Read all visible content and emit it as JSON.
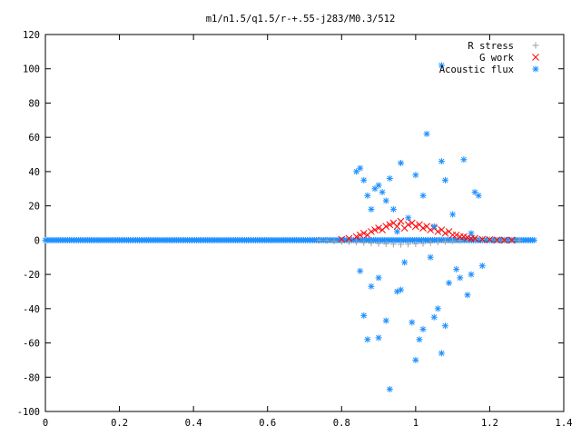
{
  "chart_data": {
    "type": "scatter",
    "title": "m1/n1.5/q1.5/r-+.55-j283/M0.3/512",
    "xlabel": "",
    "ylabel": "",
    "xlim": [
      0,
      1.4
    ],
    "ylim": [
      -100,
      120
    ],
    "x_ticks": [
      0,
      0.2,
      0.4,
      0.6,
      0.8,
      1,
      1.2,
      1.4
    ],
    "x_tick_labels": [
      "0",
      "0.2",
      "0.4",
      "0.6",
      "0.8",
      "1",
      "1.2",
      "1.4"
    ],
    "y_ticks": [
      -100,
      -80,
      -60,
      -40,
      -20,
      0,
      20,
      40,
      60,
      80,
      100,
      120
    ],
    "y_tick_labels": [
      "-100",
      "-80",
      "-60",
      "-40",
      "-20",
      "0",
      "20",
      "40",
      "60",
      "80",
      "100",
      "120"
    ],
    "grid": false,
    "legend_position": "top-right",
    "series": [
      {
        "name": "R stress",
        "marker": "plus",
        "color": "#a0a0a0",
        "points": [
          [
            0.74,
            0
          ],
          [
            0.76,
            -0.2
          ],
          [
            0.78,
            -0.5
          ],
          [
            0.8,
            -0.8
          ],
          [
            0.82,
            -1.0
          ],
          [
            0.84,
            -1.2
          ],
          [
            0.86,
            -1.5
          ],
          [
            0.88,
            -1.8
          ],
          [
            0.9,
            -2.0
          ],
          [
            0.92,
            -2.2
          ],
          [
            0.94,
            -2.4
          ],
          [
            0.96,
            -2.5
          ],
          [
            0.98,
            -2.4
          ],
          [
            1.0,
            -2.2
          ],
          [
            1.02,
            -2.0
          ],
          [
            1.04,
            -1.6
          ],
          [
            1.06,
            -1.2
          ],
          [
            1.08,
            -0.8
          ],
          [
            1.1,
            -0.5
          ],
          [
            1.12,
            -0.2
          ],
          [
            1.14,
            0.2
          ],
          [
            1.16,
            0.4
          ],
          [
            1.18,
            0.5
          ],
          [
            1.2,
            0.3
          ],
          [
            1.22,
            0.1
          ],
          [
            1.24,
            0
          ],
          [
            1.26,
            0
          ],
          [
            1.28,
            0
          ]
        ]
      },
      {
        "name": "G work",
        "marker": "cross",
        "color": "#ff0000",
        "points": [
          [
            0.8,
            0.5
          ],
          [
            0.82,
            1
          ],
          [
            0.84,
            2
          ],
          [
            0.85,
            3
          ],
          [
            0.86,
            4
          ],
          [
            0.87,
            3
          ],
          [
            0.88,
            5
          ],
          [
            0.89,
            6
          ],
          [
            0.9,
            7
          ],
          [
            0.91,
            6
          ],
          [
            0.92,
            8
          ],
          [
            0.93,
            9
          ],
          [
            0.94,
            10
          ],
          [
            0.95,
            8
          ],
          [
            0.96,
            11
          ],
          [
            0.97,
            7
          ],
          [
            0.98,
            9
          ],
          [
            0.99,
            10
          ],
          [
            1.0,
            8
          ],
          [
            1.01,
            9
          ],
          [
            1.02,
            7
          ],
          [
            1.03,
            8
          ],
          [
            1.04,
            6
          ],
          [
            1.05,
            7
          ],
          [
            1.06,
            5
          ],
          [
            1.07,
            6
          ],
          [
            1.08,
            4
          ],
          [
            1.09,
            5
          ],
          [
            1.1,
            3
          ],
          [
            1.11,
            3
          ],
          [
            1.12,
            2
          ],
          [
            1.13,
            2
          ],
          [
            1.14,
            1.5
          ],
          [
            1.15,
            1
          ],
          [
            1.16,
            1
          ],
          [
            1.18,
            0.5
          ],
          [
            1.2,
            0.3
          ],
          [
            1.22,
            0.1
          ],
          [
            1.24,
            0
          ],
          [
            1.26,
            0
          ]
        ]
      },
      {
        "name": "Acoustic flux",
        "marker": "star",
        "color": "#1e90ff",
        "points": [
          [
            0.84,
            40
          ],
          [
            0.85,
            42
          ],
          [
            0.86,
            35
          ],
          [
            0.86,
            -44
          ],
          [
            0.87,
            -58
          ],
          [
            0.87,
            26
          ],
          [
            0.88,
            18
          ],
          [
            0.88,
            -27
          ],
          [
            0.89,
            30
          ],
          [
            0.9,
            32
          ],
          [
            0.9,
            -57
          ],
          [
            0.91,
            28
          ],
          [
            0.92,
            23
          ],
          [
            0.92,
            -47
          ],
          [
            0.93,
            36
          ],
          [
            0.93,
            -87
          ],
          [
            0.94,
            18
          ],
          [
            0.95,
            -30
          ],
          [
            0.96,
            45
          ],
          [
            0.96,
            -29
          ],
          [
            0.97,
            -13
          ],
          [
            0.98,
            13
          ],
          [
            0.99,
            -48
          ],
          [
            1.0,
            38
          ],
          [
            1.0,
            -70
          ],
          [
            1.01,
            -58
          ],
          [
            1.02,
            26
          ],
          [
            1.02,
            -52
          ],
          [
            1.03,
            62
          ],
          [
            1.04,
            -10
          ],
          [
            1.05,
            -45
          ],
          [
            1.06,
            -40
          ],
          [
            1.07,
            46
          ],
          [
            1.07,
            -66
          ],
          [
            1.08,
            35
          ],
          [
            1.08,
            -50
          ],
          [
            1.09,
            -25
          ],
          [
            1.1,
            15
          ],
          [
            1.11,
            -17
          ],
          [
            1.12,
            -22
          ],
          [
            1.13,
            47
          ],
          [
            1.14,
            -32
          ],
          [
            1.15,
            -20
          ],
          [
            1.16,
            28
          ],
          [
            1.17,
            26
          ],
          [
            1.18,
            -15
          ],
          [
            1.07,
            102
          ],
          [
            0.85,
            -18
          ],
          [
            0.9,
            -22
          ],
          [
            0.95,
            5
          ],
          [
            1.05,
            8
          ],
          [
            1.15,
            4
          ]
        ]
      }
    ]
  }
}
